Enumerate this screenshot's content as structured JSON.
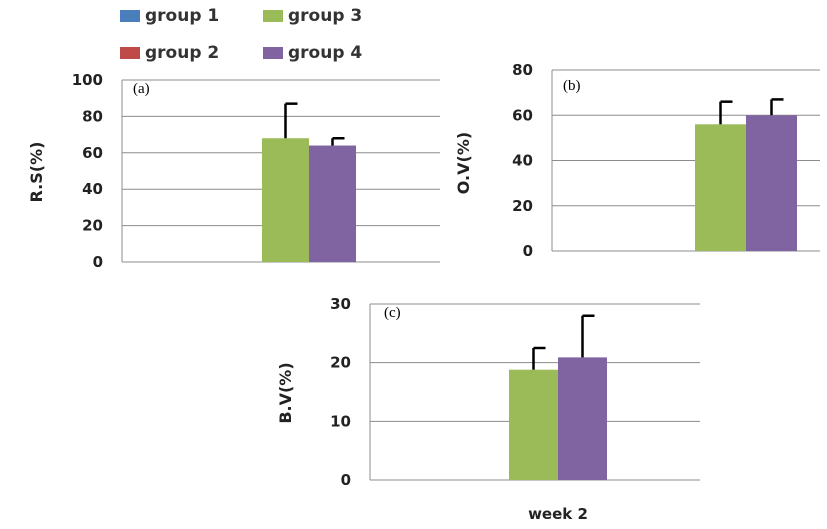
{
  "legend": [
    {
      "label": "group 1",
      "color": "#4a7ebb"
    },
    {
      "label": "group 3",
      "color": "#9bbb59"
    },
    {
      "label": "group 2",
      "color": "#be4b48"
    },
    {
      "label": "group 4",
      "color": "#8064a2"
    }
  ],
  "chart_data": [
    {
      "type": "bar",
      "panel_label": "(a)",
      "ylabel": "R.S(%)",
      "ylim": [
        0,
        100
      ],
      "yticks": [
        "0",
        "20",
        "40",
        "60",
        "80",
        "100"
      ],
      "categories": [
        ""
      ],
      "series": [
        {
          "name": "group 1",
          "values": [
            0
          ],
          "error": [
            0
          ]
        },
        {
          "name": "group 2",
          "values": [
            0
          ],
          "error": [
            0
          ]
        },
        {
          "name": "group 3",
          "values": [
            68
          ],
          "error": [
            19
          ]
        },
        {
          "name": "group 4",
          "values": [
            64
          ],
          "error": [
            4
          ]
        }
      ],
      "grid": true
    },
    {
      "type": "bar",
      "panel_label": "(b)",
      "ylabel": "O.V(%)",
      "ylim": [
        0,
        80
      ],
      "yticks": [
        "0",
        "20",
        "40",
        "60",
        "80"
      ],
      "categories": [
        ""
      ],
      "series": [
        {
          "name": "group 1",
          "values": [
            0
          ],
          "error": [
            0
          ]
        },
        {
          "name": "group 2",
          "values": [
            0
          ],
          "error": [
            0
          ]
        },
        {
          "name": "group 3",
          "values": [
            56
          ],
          "error": [
            10
          ]
        },
        {
          "name": "group 4",
          "values": [
            60
          ],
          "error": [
            7
          ]
        }
      ],
      "grid": true
    },
    {
      "type": "bar",
      "panel_label": "(c)",
      "ylabel": "B.V(%)",
      "xlabel": "week 2",
      "ylim": [
        0,
        30
      ],
      "yticks": [
        "0",
        "10",
        "20",
        "30"
      ],
      "categories": [
        "week 2"
      ],
      "series": [
        {
          "name": "group 1",
          "values": [
            0
          ],
          "error": [
            0
          ]
        },
        {
          "name": "group 2",
          "values": [
            0
          ],
          "error": [
            0
          ]
        },
        {
          "name": "group 3",
          "values": [
            18.8
          ],
          "error": [
            3.7
          ]
        },
        {
          "name": "group 4",
          "values": [
            20.9
          ],
          "error": [
            7.1
          ]
        }
      ],
      "grid": true
    }
  ]
}
